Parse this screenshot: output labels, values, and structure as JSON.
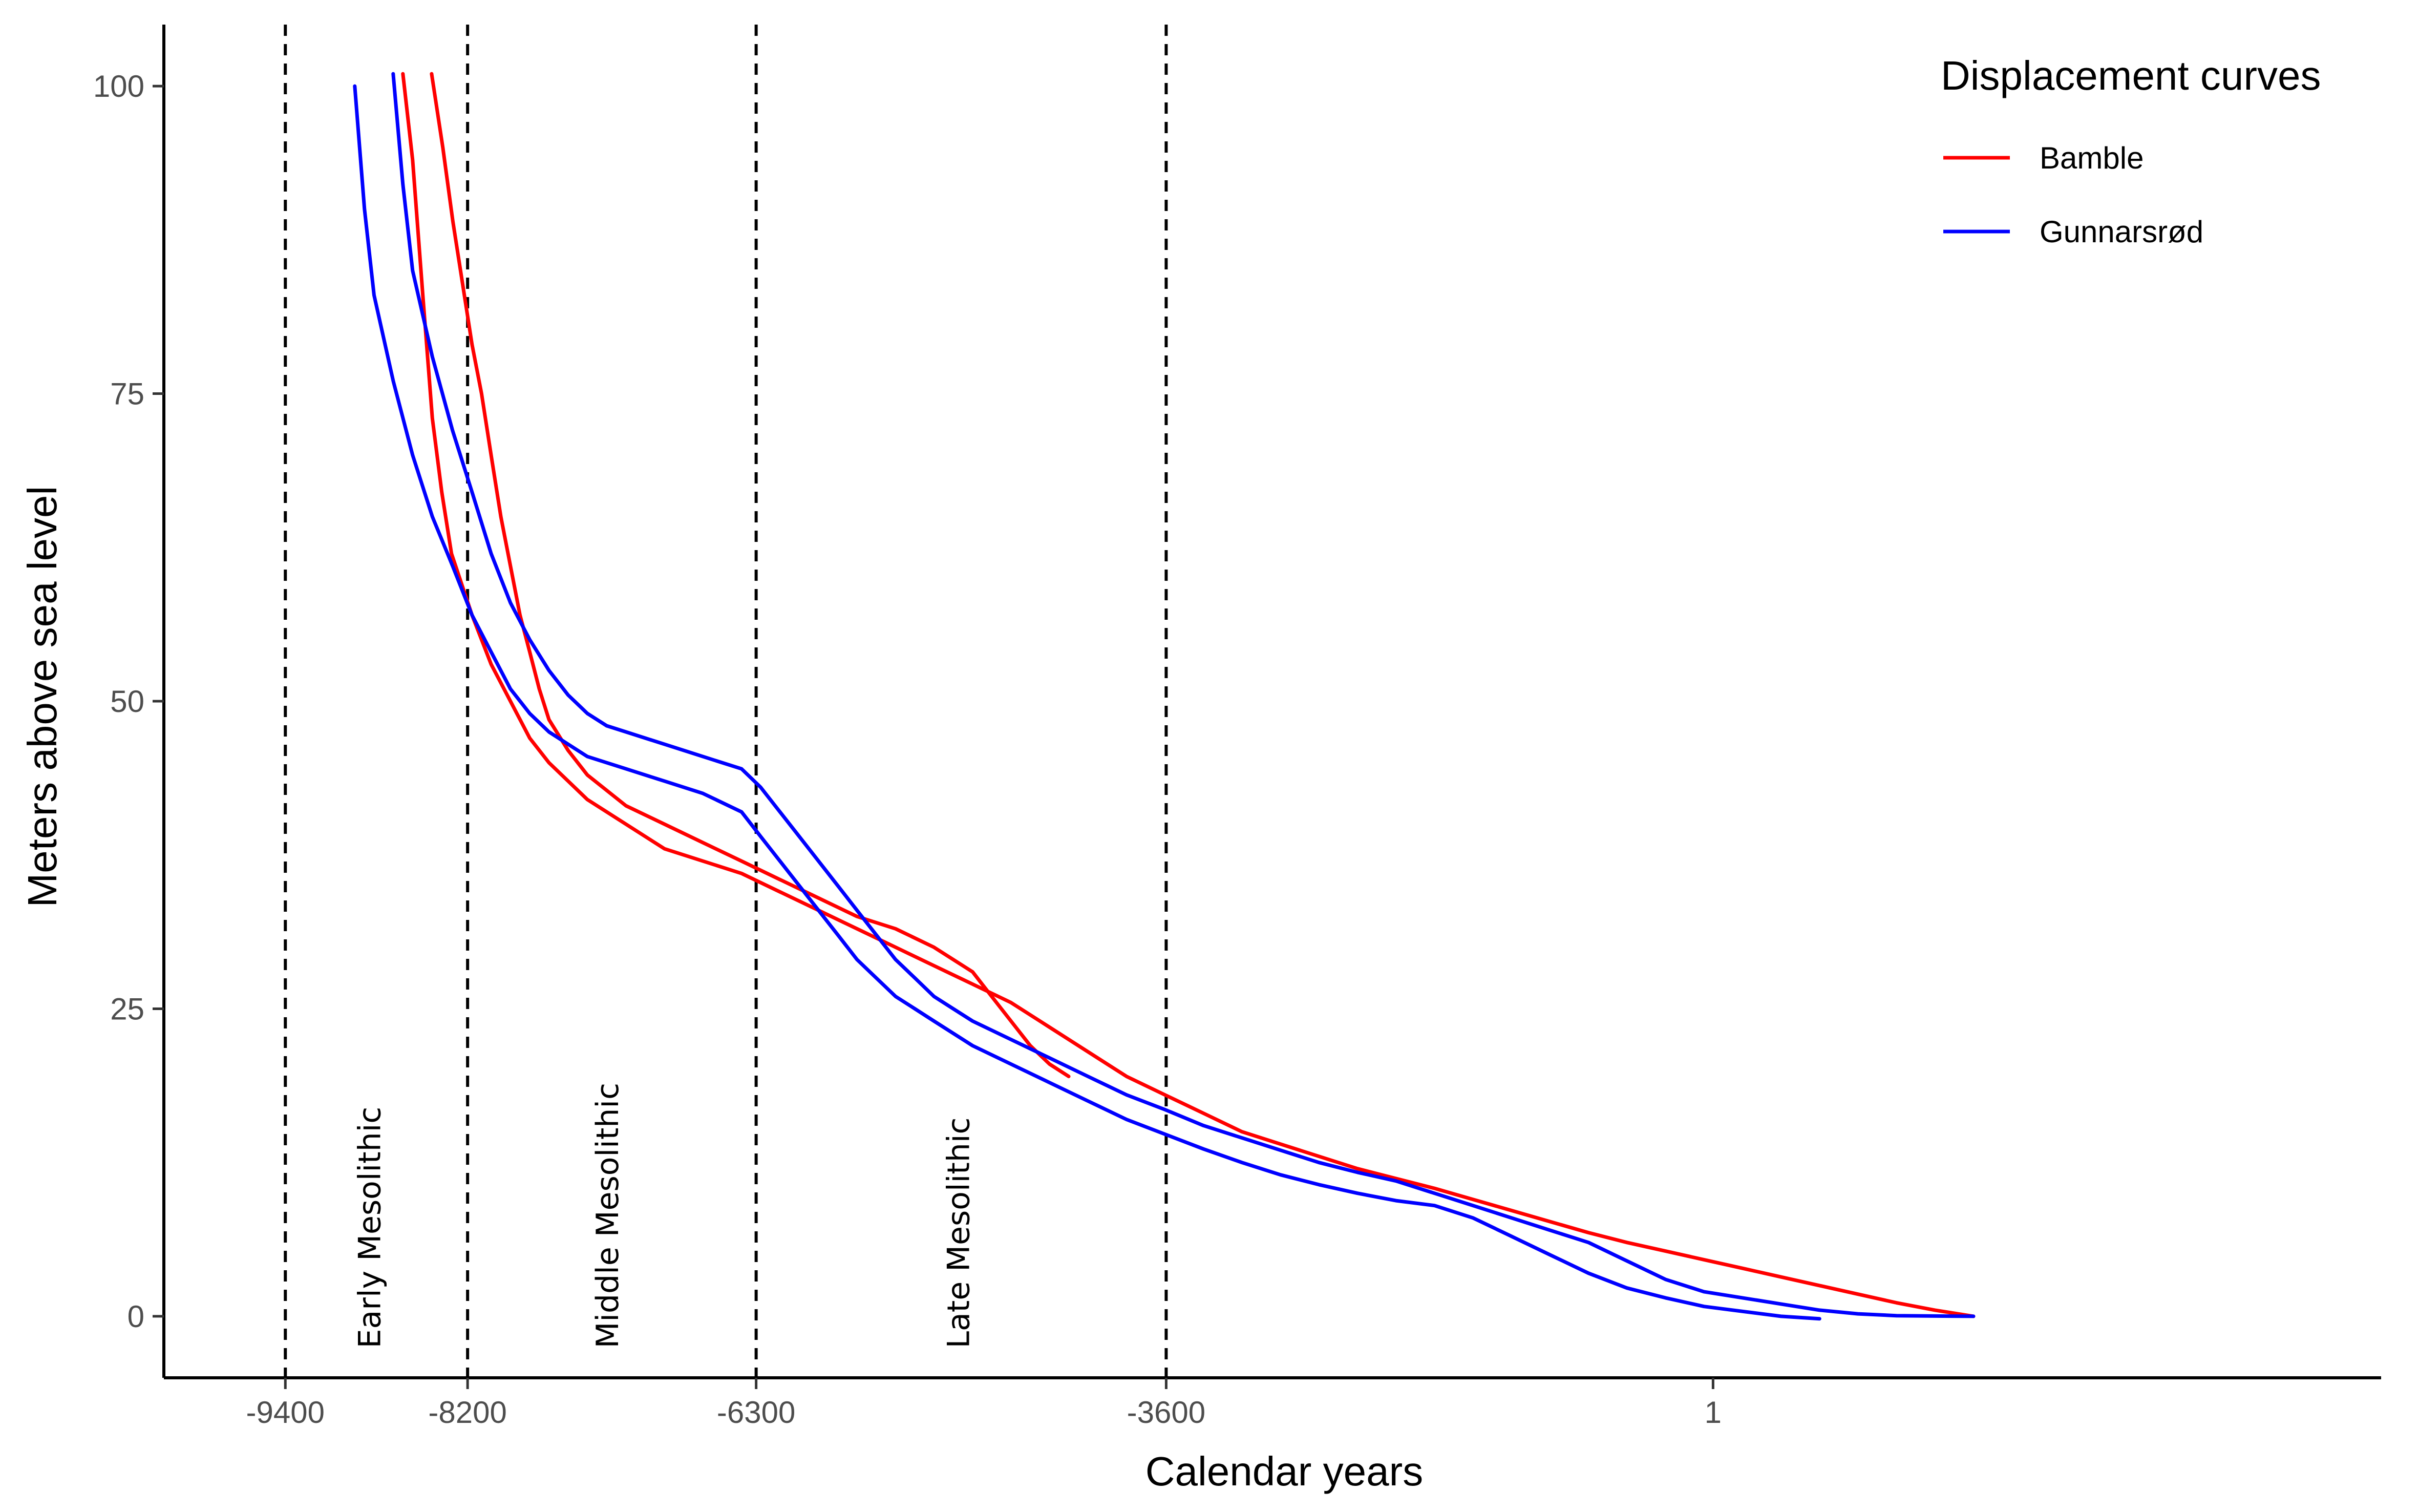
{
  "chart_data": {
    "type": "line",
    "xlabel": "Calendar years",
    "ylabel": "Meters above sea level",
    "xlim": [
      -10200,
      4400
    ],
    "ylim": [
      -5,
      105
    ],
    "x_ticks": [
      -9400,
      -8200,
      -6300,
      -3600,
      1
    ],
    "x_tick_labels": [
      "-9400",
      "-8200",
      "-6300",
      "-3600",
      "1"
    ],
    "y_ticks": [
      0,
      25,
      50,
      75,
      100
    ],
    "y_tick_labels": [
      "0",
      "25",
      "50",
      "75",
      "100"
    ],
    "grid": false,
    "legend": {
      "title": "Displacement curves",
      "position": "top-right",
      "entries": [
        {
          "name": "Bamble",
          "color": "#ff0000"
        },
        {
          "name": "Gunnarsrød",
          "color": "#0000ff"
        }
      ]
    },
    "period_boundaries": [
      -9400,
      -8200,
      -6300,
      -3600
    ],
    "period_labels": [
      {
        "text": "Early Mesolithic",
        "x": -8776
      },
      {
        "text": "Middle Mesolithic",
        "x": -7210
      },
      {
        "text": "Late Mesolithic",
        "x": -4898
      }
    ],
    "series": [
      {
        "name": "Bamble",
        "color": "#ff0000",
        "lines": [
          [
            [
              -8626,
              101
            ],
            [
              -8562,
              94
            ],
            [
              -8495,
              83
            ],
            [
              -8432,
              73
            ],
            [
              -8370,
              67
            ],
            [
              -8306,
              62
            ],
            [
              -8171,
              57
            ],
            [
              -8045,
              53
            ],
            [
              -7918,
              50
            ],
            [
              -7791,
              47
            ],
            [
              -7664,
              45
            ],
            [
              -7411,
              42
            ],
            [
              -7157,
              40
            ],
            [
              -6903,
              38
            ],
            [
              -6650,
              37
            ],
            [
              -6396,
              36
            ],
            [
              -6143,
              34.5
            ],
            [
              -5889,
              33
            ],
            [
              -5636,
              31.5
            ],
            [
              -5382,
              30
            ],
            [
              -5129,
              28.5
            ],
            [
              -4875,
              27
            ],
            [
              -4622,
              25.5
            ],
            [
              -4368,
              23.5
            ],
            [
              -4115,
              21.5
            ],
            [
              -3861,
              19.5
            ],
            [
              -3608,
              18
            ],
            [
              -3354,
              16.5
            ],
            [
              -3101,
              15
            ],
            [
              -2847,
              14
            ],
            [
              -2594,
              13
            ],
            [
              -2340,
              12
            ],
            [
              -2087,
              11.2
            ],
            [
              -1833,
              10.4
            ],
            [
              -1580,
              9.5
            ],
            [
              -1326,
              8.6
            ],
            [
              -1073,
              7.7
            ],
            [
              -819,
              6.8
            ],
            [
              -566,
              6
            ],
            [
              -312,
              5.3
            ],
            [
              -59,
              4.6
            ],
            [
              195,
              3.9
            ],
            [
              448,
              3.2
            ],
            [
              702,
              2.5
            ],
            [
              955,
              1.8
            ],
            [
              1209,
              1.1
            ],
            [
              1462,
              0.5
            ],
            [
              1716,
              0
            ]
          ],
          [
            [
              -8437,
              101
            ],
            [
              -8363,
              95
            ],
            [
              -8297,
              89
            ],
            [
              -8234,
              84
            ],
            [
              -8171,
              79
            ],
            [
              -8108,
              75
            ],
            [
              -8045,
              70
            ],
            [
              -7981,
              65
            ],
            [
              -7918,
              61
            ],
            [
              -7855,
              57
            ],
            [
              -7791,
              54
            ],
            [
              -7728,
              51
            ],
            [
              -7664,
              48.5
            ],
            [
              -7538,
              46
            ],
            [
              -7411,
              44
            ],
            [
              -7157,
              41.5
            ],
            [
              -6903,
              40
            ],
            [
              -6650,
              38.5
            ],
            [
              -6396,
              37
            ],
            [
              -6143,
              35.5
            ],
            [
              -5889,
              34
            ],
            [
              -5636,
              32.5
            ],
            [
              -5382,
              31.5
            ],
            [
              -5129,
              30
            ],
            [
              -4875,
              28
            ],
            [
              -4749,
              26
            ],
            [
              -4622,
              24
            ],
            [
              -4495,
              22
            ],
            [
              -4368,
              20.5
            ],
            [
              -4242,
              19.5
            ]
          ]
        ]
      },
      {
        "name": "Gunnarsrød",
        "color": "#0000ff",
        "lines": [
          [
            [
              -8943,
              100
            ],
            [
              -8879,
              90
            ],
            [
              -8816,
              83
            ],
            [
              -8689,
              76
            ],
            [
              -8562,
              70
            ],
            [
              -8432,
              65
            ],
            [
              -8299,
              61
            ],
            [
              -8171,
              57
            ],
            [
              -8045,
              54
            ],
            [
              -7918,
              51
            ],
            [
              -7791,
              49
            ],
            [
              -7664,
              47.5
            ],
            [
              -7538,
              46.5
            ],
            [
              -7411,
              45.5
            ],
            [
              -7157,
              44.5
            ],
            [
              -6903,
              43.5
            ],
            [
              -6650,
              42.5
            ],
            [
              -6396,
              41
            ],
            [
              -6270,
              39
            ],
            [
              -6143,
              37
            ],
            [
              -6016,
              35
            ],
            [
              -5889,
              33
            ],
            [
              -5762,
              31
            ],
            [
              -5636,
              29
            ],
            [
              -5509,
              27.5
            ],
            [
              -5382,
              26
            ],
            [
              -5255,
              25
            ],
            [
              -5129,
              24
            ],
            [
              -5002,
              23
            ],
            [
              -4875,
              22
            ],
            [
              -4622,
              20.5
            ],
            [
              -4368,
              19
            ],
            [
              -4115,
              17.5
            ],
            [
              -3861,
              16
            ],
            [
              -3608,
              14.8
            ],
            [
              -3354,
              13.6
            ],
            [
              -3101,
              12.5
            ],
            [
              -2847,
              11.5
            ],
            [
              -2594,
              10.7
            ],
            [
              -2340,
              10
            ],
            [
              -2087,
              9.4
            ],
            [
              -1833,
              9
            ],
            [
              -1580,
              8
            ],
            [
              -1326,
              6.5
            ],
            [
              -1073,
              5
            ],
            [
              -819,
              3.5
            ],
            [
              -566,
              2.3
            ],
            [
              -312,
              1.5
            ],
            [
              -59,
              0.8
            ],
            [
              195,
              0.4
            ],
            [
              448,
              0
            ],
            [
              702,
              -0.2
            ]
          ],
          [
            [
              -8690,
              101
            ],
            [
              -8626,
              92
            ],
            [
              -8562,
              85
            ],
            [
              -8432,
              78
            ],
            [
              -8299,
              72
            ],
            [
              -8171,
              67
            ],
            [
              -8045,
              62
            ],
            [
              -7918,
              58
            ],
            [
              -7791,
              55
            ],
            [
              -7664,
              52.5
            ],
            [
              -7538,
              50.5
            ],
            [
              -7411,
              49
            ],
            [
              -7284,
              48
            ],
            [
              -7157,
              47.5
            ],
            [
              -6903,
              46.5
            ],
            [
              -6650,
              45.5
            ],
            [
              -6396,
              44.5
            ],
            [
              -6270,
              43
            ],
            [
              -6143,
              41
            ],
            [
              -6016,
              39
            ],
            [
              -5889,
              37
            ],
            [
              -5762,
              35
            ],
            [
              -5636,
              33
            ],
            [
              -5509,
              31
            ],
            [
              -5382,
              29
            ],
            [
              -5255,
              27.5
            ],
            [
              -5129,
              26
            ],
            [
              -5002,
              25
            ],
            [
              -4875,
              24
            ],
            [
              -4622,
              22.5
            ],
            [
              -4368,
              21
            ],
            [
              -4115,
              19.5
            ],
            [
              -3861,
              18
            ],
            [
              -3608,
              16.8
            ],
            [
              -3354,
              15.5
            ],
            [
              -3101,
              14.5
            ],
            [
              -2847,
              13.5
            ],
            [
              -2594,
              12.5
            ],
            [
              -2340,
              11.7
            ],
            [
              -2087,
              11
            ],
            [
              -1833,
              10
            ],
            [
              -1580,
              9
            ],
            [
              -1326,
              8
            ],
            [
              -1073,
              7
            ],
            [
              -819,
              6
            ],
            [
              -566,
              4.5
            ],
            [
              -312,
              3
            ],
            [
              -59,
              2
            ],
            [
              195,
              1.5
            ],
            [
              448,
              1
            ],
            [
              702,
              0.5
            ],
            [
              955,
              0.2
            ],
            [
              1209,
              0.05
            ],
            [
              1462,
              0.02
            ],
            [
              1716,
              0
            ]
          ]
        ]
      }
    ]
  }
}
